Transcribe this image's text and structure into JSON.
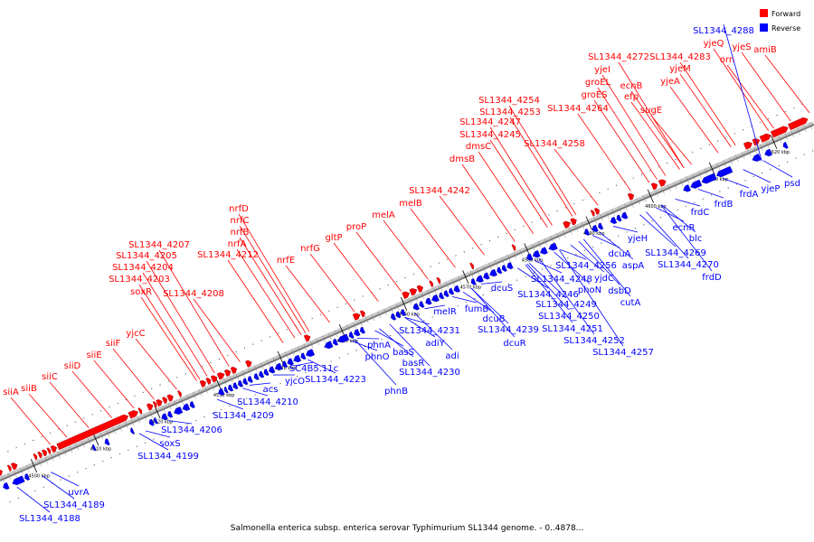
{
  "caption": "Salmonella enterica subsp. enterica serovar Typhimurium SL1344 genome. - 0..4878...",
  "legend": [
    {
      "label": "Forward",
      "color": "#ff0000"
    },
    {
      "label": "Reverse",
      "color": "#0000ff"
    }
  ],
  "colors": {
    "forward": "#ff0000",
    "reverse": "#0000ff",
    "axis": "#7a7a7a"
  },
  "axis_ticks": [
    "4500 kbp",
    "4510 kbp",
    "4520 kbp",
    "4530 kbp",
    "4540 kbp",
    "4550 kbp",
    "4560 kbp",
    "4570 kbp",
    "4580 kbp",
    "4590 kbp",
    "4600 kbp",
    "4610 kbp",
    "4620 kbp"
  ],
  "forward_labels": [
    "siiA",
    "siiB",
    "siiC",
    "siiD",
    "siiE",
    "siiF",
    "yjcC",
    "soxR",
    "SL1344_4203",
    "SL1344_4204",
    "SL1344_4205",
    "SL1344_4207",
    "SL1344_4208",
    "nrfA",
    "nrfB",
    "nrfC",
    "nrfD",
    "SL1344_4212",
    "nrfE",
    "nrfG",
    "gltP",
    "proP",
    "melA",
    "melB",
    "SL1344_4242",
    "dmsB",
    "dmsC",
    "SL1344_4245",
    "SL1344_4247",
    "SL1344_4253",
    "SL1344_4254",
    "SL1344_4258",
    "SL1344_4264",
    "groES",
    "groEL",
    "yjeI",
    "SL1344_4272",
    "efp",
    "ecnB",
    "sugE",
    "yjeA",
    "yjeM",
    "SL1344_4283",
    "orn",
    "yjeQ",
    "yjeS",
    "amiB"
  ],
  "reverse_labels": [
    "SL1344_4188",
    "SL1344_4189",
    "uvrA",
    "soxS",
    "SL1344_4199",
    "SL1344_4206",
    "SL1344_4209",
    "SL1344_4210",
    "acs",
    "yjcO",
    "SC4B5.11c",
    "SL1344_4223",
    "phnA",
    "phnO",
    "phnB",
    "basS",
    "basR",
    "adiY",
    "SL1344_4231",
    "SL1344_4230",
    "adi",
    "melR",
    "fumB",
    "dcuB",
    "SL1344_4239",
    "dcuS",
    "dcuR",
    "SL1344_4246",
    "SL1344_4248",
    "SL1344_4249",
    "SL1344_4250",
    "SL1344_4251",
    "SL1344_4252",
    "SL1344_4256",
    "phoN",
    "yjdC",
    "dsbD",
    "SL1344_4257",
    "cutA",
    "dcuA",
    "aspA",
    "yjeH",
    "SL1344_4269",
    "SL1344_4270",
    "ecnR",
    "blc",
    "frdC",
    "frdD",
    "frdB",
    "frdA",
    "yjeP",
    "psd",
    "SL1344_4288"
  ]
}
